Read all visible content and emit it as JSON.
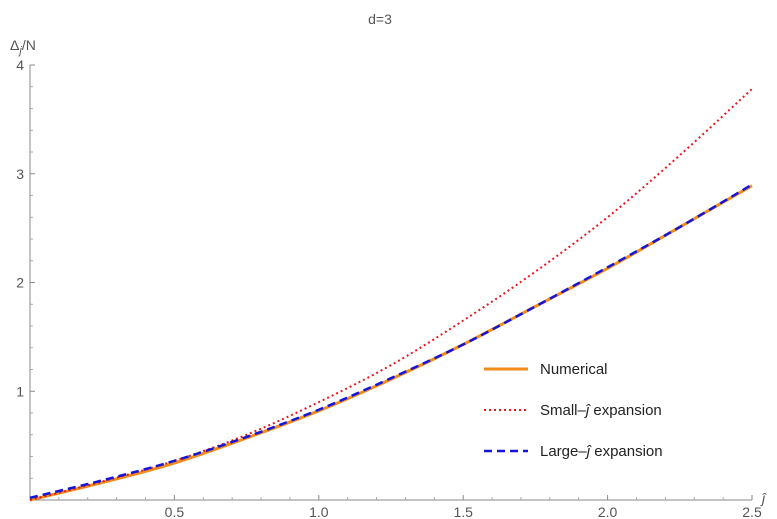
{
  "chart_data": {
    "type": "line",
    "title": "d=3",
    "xlabel": "ĵ",
    "ylabel": "Δj/N",
    "ylabel_parts": {
      "main": "Δ",
      "sub": "j",
      "rest": "/N"
    },
    "xlim": [
      0,
      2.5
    ],
    "ylim": [
      0,
      4
    ],
    "x_ticks": [
      0.5,
      1.0,
      1.5,
      2.0,
      2.5
    ],
    "x_tick_labels": [
      "0.5",
      "1.0",
      "1.5",
      "2.0",
      "2.5"
    ],
    "y_ticks": [
      1,
      2,
      3,
      4
    ],
    "y_tick_labels": [
      "1",
      "2",
      "3",
      "4"
    ],
    "grid": false,
    "legend_position": "bottom-right",
    "x": [
      0,
      0.25,
      0.5,
      0.75,
      1.0,
      1.25,
      1.5,
      1.75,
      2.0,
      2.25,
      2.5
    ],
    "series": [
      {
        "name": "Numerical",
        "color": "#f28c1a",
        "style": "solid",
        "values": [
          0,
          0.16,
          0.34,
          0.57,
          0.82,
          1.11,
          1.43,
          1.78,
          2.13,
          2.51,
          2.89
        ]
      },
      {
        "name": "Small-ĵ expansion",
        "name_parts": {
          "before": "Small–",
          "hat": "ĵ",
          "after": " expansion"
        },
        "color": "#e8191d",
        "style": "dotted",
        "values": [
          0,
          0.17,
          0.36,
          0.6,
          0.9,
          1.24,
          1.65,
          2.1,
          2.6,
          3.17,
          3.78
        ]
      },
      {
        "name": "Large-ĵ expansion",
        "name_parts": {
          "before": "Large–",
          "hat": "ĵ",
          "after": " expansion"
        },
        "color": "#1515d6",
        "style": "dashed",
        "values": [
          0.02,
          0.18,
          0.36,
          0.58,
          0.83,
          1.12,
          1.43,
          1.78,
          2.14,
          2.51,
          2.9
        ]
      }
    ]
  }
}
